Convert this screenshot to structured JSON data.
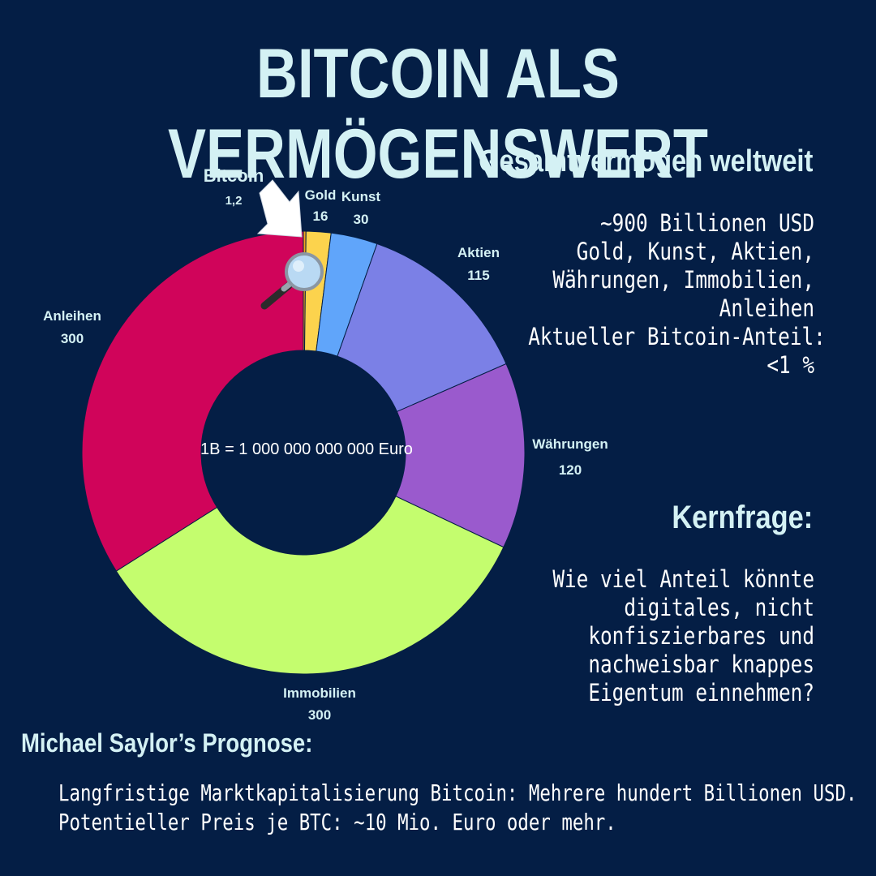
{
  "title": "BITCOIN ALS VERMÖGENSWERT",
  "right_panel": {
    "heading": "Gesamtvermögen weltweit",
    "lines": [
      "~900 Billionen USD",
      "Gold, Kunst, Aktien,",
      "Währungen, Immobilien,",
      "Anleihen",
      "Aktueller Bitcoin-Anteil:",
      "<1 %"
    ]
  },
  "kernfrage": {
    "heading": "Kernfrage:",
    "lines": [
      "Wie viel Anteil könnte",
      "digitales, nicht",
      "konfiszierbares und",
      "nachweisbar knappes",
      "Eigentum einnehmen?"
    ]
  },
  "saylor": {
    "heading": "Michael Saylor’s Prognose:",
    "lines": [
      "Langfristige Marktkapitalisierung Bitcoin: Mehrere hundert Billionen USD.",
      "Potentieller Preis je BTC: ~10 Mio. Euro oder mehr."
    ]
  },
  "chart_data": {
    "type": "pie",
    "center_label": "1B = 1 000 000 000 000 Euro",
    "categories": [
      "Bitcoin",
      "Gold",
      "Kunst",
      "Aktien",
      "Währungen",
      "Immobilien",
      "Anleihen"
    ],
    "value_labels": [
      "1,2",
      "16",
      "30",
      "115",
      "120",
      "300",
      "300"
    ],
    "values": [
      1.2,
      16,
      30,
      115,
      120,
      300,
      300
    ],
    "colors": [
      "#f4a51c",
      "#fcd34d",
      "#60a5fa",
      "#7b80e6",
      "#9a5acd",
      "#c4fd6e",
      "#d0045a"
    ],
    "icons": [
      "arrow-icon",
      "magnifier-icon"
    ]
  }
}
